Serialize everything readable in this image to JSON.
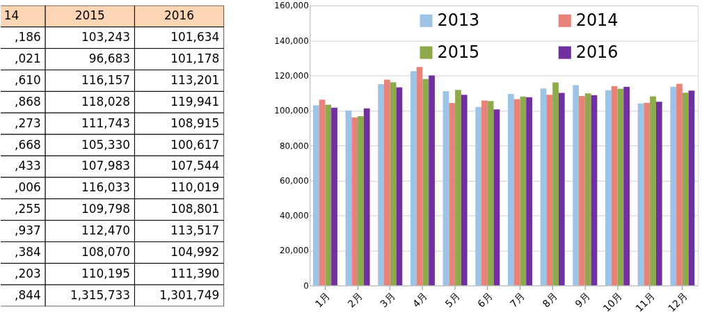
{
  "chart_data": [
    {
      "type": "other",
      "categories": [
        "14",
        "2015",
        "2016"
      ],
      "annotations": [
        ",186",
        "103,243",
        "101,634",
        ",021",
        "96,683",
        "101,178",
        ",610",
        "116,157",
        "113,201",
        ",868",
        "118,028",
        "119,941",
        ",273",
        "111,743",
        "108,915",
        ",668",
        "105,330",
        "100,617",
        ",433",
        "107,983",
        "107,544",
        ",006",
        "116,033",
        "110,019",
        ",255",
        "109,798",
        "108,801",
        ",937",
        "112,470",
        "113,517",
        ",384",
        "108,070",
        "104,992",
        ",203",
        "110,195",
        "111,390",
        ",844",
        "1,315,733",
        "1,301,749"
      ]
    },
    {
      "type": "bar",
      "categories": [
        "1月",
        "2月",
        "3月",
        "4月",
        "5月",
        "6月",
        "7月",
        "8月",
        "9月",
        "10月",
        "11月",
        "12月"
      ],
      "series": [
        {
          "name": "2013",
          "color": "#9dc3e6",
          "values": [
            103000,
            100000,
            115000,
            122500,
            111000,
            102000,
            109500,
            112500,
            114500,
            111500,
            104000,
            113500
          ]
        },
        {
          "name": "2014",
          "color": "#e8837a",
          "values": [
            106186,
            96021,
            117610,
            124868,
            104273,
            105668,
            106433,
            109006,
            108255,
            113937,
            104384,
            115203
          ]
        },
        {
          "name": "2015",
          "color": "#8faa4c",
          "values": [
            103243,
            96683,
            116157,
            118028,
            111743,
            105330,
            107983,
            116033,
            109798,
            112470,
            108070,
            110195
          ]
        },
        {
          "name": "2016",
          "color": "#7030a0",
          "values": [
            101634,
            101178,
            113201,
            119941,
            108915,
            100617,
            107544,
            110019,
            108801,
            113517,
            104992,
            111390
          ]
        }
      ],
      "ylim": [
        0,
        160000
      ],
      "yticks": [
        {
          "value": 0,
          "label": "0"
        },
        {
          "value": 20000,
          "label": "20,000"
        },
        {
          "value": 40000,
          "label": "40,000"
        },
        {
          "value": 60000,
          "label": "60,000"
        },
        {
          "value": 80000,
          "label": "80,000"
        },
        {
          "value": 100000,
          "label": "100,000"
        },
        {
          "value": 120000,
          "label": "120,000"
        },
        {
          "value": 140000,
          "label": "140,000"
        },
        {
          "value": 160000,
          "label": "160,000"
        }
      ],
      "grid": "y",
      "legend": "top"
    }
  ]
}
